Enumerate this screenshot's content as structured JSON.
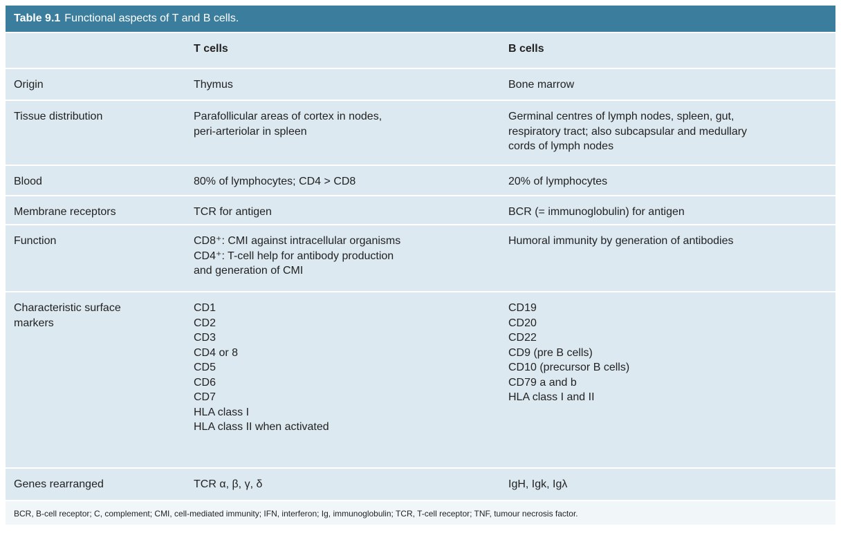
{
  "table": {
    "caption_label": "Table 9.1",
    "caption_text": "Functional aspects of T and B cells.",
    "header": [
      "",
      "T cells",
      "B cells"
    ],
    "rows": [
      [
        [
          "Origin"
        ],
        [
          "Thymus"
        ],
        [
          "Bone marrow"
        ]
      ],
      [
        [
          "Tissue distribution"
        ],
        [
          "Parafollicular areas of cortex in nodes,",
          "peri-arteriolar in spleen"
        ],
        [
          "Germinal centres of lymph nodes, spleen, gut,",
          "respiratory tract; also subcapsular and medullary",
          "cords of lymph nodes"
        ]
      ],
      [
        [
          "Blood"
        ],
        [
          "80% of lymphocytes; CD4 > CD8"
        ],
        [
          "20% of lymphocytes"
        ]
      ],
      [
        [
          "Membrane receptors"
        ],
        [
          "TCR for antigen"
        ],
        [
          "BCR (= immunoglobulin) for antigen"
        ]
      ],
      [
        [
          "Function"
        ],
        [
          "CD8⁺: CMI against intracellular organisms",
          "CD4⁺: T-cell help for antibody production",
          "and generation of CMI"
        ],
        [
          "Humoral immunity by generation of antibodies"
        ]
      ],
      [
        [
          "Characteristic surface",
          "markers"
        ],
        [
          "CD1",
          "CD2",
          "CD3",
          "CD4 or 8",
          "CD5",
          "CD6",
          "CD7",
          "HLA class I",
          "HLA class II when activated"
        ],
        [
          "CD19",
          "CD20",
          "CD22",
          "CD9 (pre B cells)",
          "CD10 (precursor B cells)",
          "CD79 a and b",
          "HLA class I and II"
        ]
      ],
      [
        [
          "Genes rearranged"
        ],
        [
          "TCR α, β, γ, δ"
        ],
        [
          "IgH, Igk, Igλ"
        ]
      ]
    ],
    "footnote": "BCR, B-cell receptor; C, complement; CMI, cell-mediated immunity; IFN, interferon; Ig, immunoglobulin; TCR, T-cell receptor; TNF, tumour necrosis factor."
  }
}
